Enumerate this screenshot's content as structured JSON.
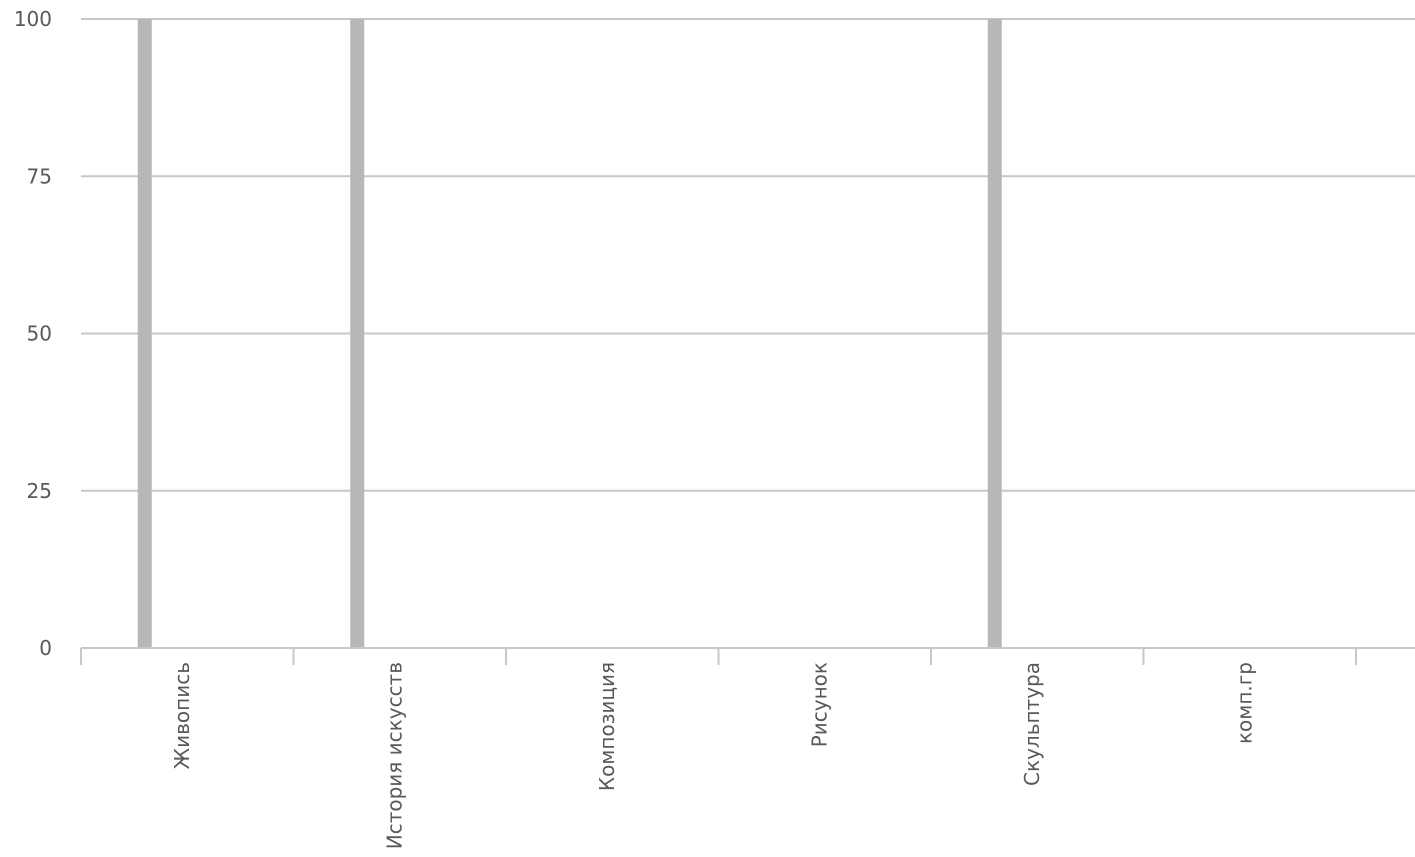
{
  "chart_data": {
    "type": "bar",
    "title": "",
    "xlabel": "",
    "ylabel": "",
    "categories": [
      "Живопись",
      "История искусств",
      "Композиция",
      "Рисунок",
      "Скульптура",
      "комп.гр"
    ],
    "series": [
      {
        "values": [
          100,
          100,
          0,
          0,
          100,
          0
        ]
      }
    ],
    "ylim": [
      0,
      100
    ],
    "yticks": [
      0,
      25,
      50,
      75,
      100
    ],
    "grid": true,
    "legend": "none",
    "bar_color": "#b7b7b7",
    "grid_color": "#c8c8c8",
    "label_color": "#595959"
  }
}
